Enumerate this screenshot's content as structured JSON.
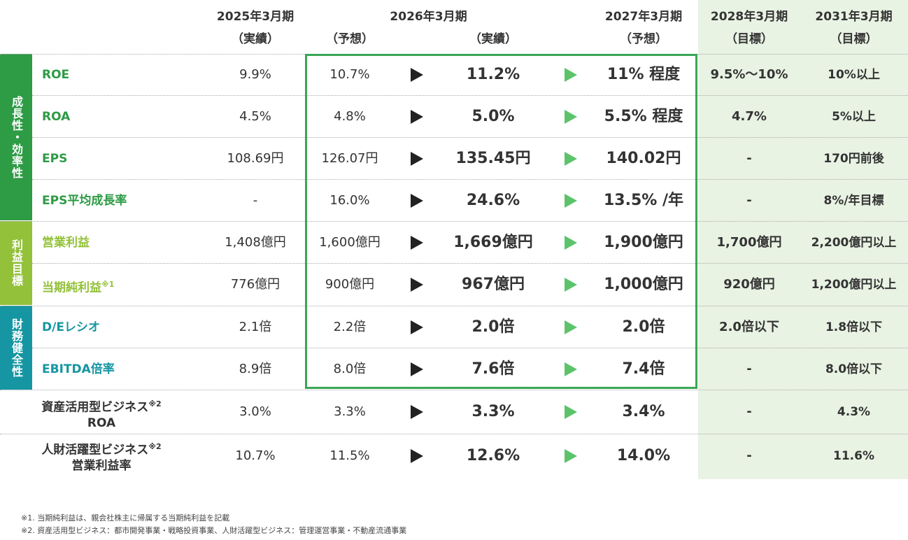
{
  "header": {
    "col_2025": {
      "year": "2025年3月期",
      "type": "（実績）"
    },
    "col_2026": {
      "year": "2026年3月期",
      "forecast": "（予想）",
      "actual": "（実績）"
    },
    "col_2027": {
      "year": "2027年3月期",
      "type": "（予想）"
    },
    "col_2028": {
      "year": "2028年3月期",
      "type": "（目標）"
    },
    "col_2031": {
      "year": "2031年3月期",
      "type": "（目標）"
    }
  },
  "categories": {
    "growth": "成長性・効率性",
    "profit": "利益目標",
    "financial": "財務健全性"
  },
  "rows": [
    {
      "label": "ROE",
      "v2025": "9.9%",
      "v2026f": "10.7%",
      "v2026a": "11.2%",
      "v2027": "11% 程度",
      "v2028": "9.5%〜10%",
      "v2031": "10%以上"
    },
    {
      "label": "ROA",
      "v2025": "4.5%",
      "v2026f": "4.8%",
      "v2026a": "5.0%",
      "v2027": "5.5% 程度",
      "v2028": "4.7%",
      "v2031": "5%以上"
    },
    {
      "label": "EPS",
      "v2025": "108.69円",
      "v2026f": "126.07円",
      "v2026a": "135.45円",
      "v2027": "140.02円",
      "v2028": "-",
      "v2031": "170円前後"
    },
    {
      "label": "EPS平均成長率",
      "v2025": "-",
      "v2026f": "16.0%",
      "v2026a": "24.6%",
      "v2027": "13.5% /年",
      "v2028": "-",
      "v2031": "8%/年目標"
    },
    {
      "label": "営業利益",
      "v2025": "1,408億円",
      "v2026f": "1,600億円",
      "v2026a": "1,669億円",
      "v2027": "1,900億円",
      "v2028": "1,700億円",
      "v2031": "2,200億円以上"
    },
    {
      "label": "当期純利益",
      "label_note": "※1",
      "v2025": "776億円",
      "v2026f": "900億円",
      "v2026a": "967億円",
      "v2027": "1,000億円",
      "v2028": "920億円",
      "v2031": "1,200億円以上"
    },
    {
      "label": "D/Eレシオ",
      "v2025": "2.1倍",
      "v2026f": "2.2倍",
      "v2026a": "2.0倍",
      "v2027": "2.0倍",
      "v2028": "2.0倍以下",
      "v2031": "1.8倍以下"
    },
    {
      "label": "EBITDA倍率",
      "v2025": "8.9倍",
      "v2026f": "8.0倍",
      "v2026a": "7.6倍",
      "v2027": "7.4倍",
      "v2028": "-",
      "v2031": "8.0倍以下"
    },
    {
      "label_line1": "資産活用型ビジネス",
      "label_note": "※2",
      "label_line2": "ROA",
      "v2025": "3.0%",
      "v2026f": "3.3%",
      "v2026a": "3.3%",
      "v2027": "3.4%",
      "v2028": "-",
      "v2031": "4.3%"
    },
    {
      "label_line1": "人財活躍型ビジネス",
      "label_note": "※2",
      "label_line2": "営業利益率",
      "v2025": "10.7%",
      "v2026f": "11.5%",
      "v2026a": "12.6%",
      "v2027": "14.0%",
      "v2028": "-",
      "v2031": "11.6%"
    }
  ],
  "notes": [
    "※1. 当期純利益は、親会社株主に帰属する当期純利益を記載",
    "※2. 資産活用型ビジネス：都市開発事業・戦略投資事業、人財活躍型ビジネス：管理運営事業・不動産流通事業"
  ],
  "colors": {
    "growth": "#2e9b45",
    "profit": "#93c13a",
    "financial": "#1596a2",
    "target_bg": "#e8f3e3",
    "highlight_box": "#3aa655",
    "arrow_green": "#5cc36a"
  }
}
